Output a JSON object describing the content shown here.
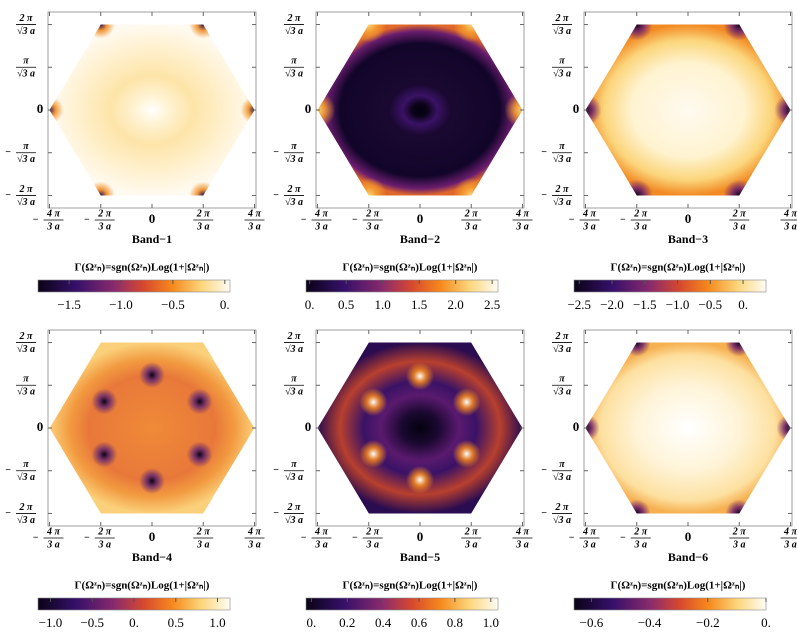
{
  "chart_data": [
    {
      "type": "heatmap",
      "title": "Band−1",
      "colorbar_label": "Γ(Ωᶻₙ)=sgn(Ωᶻₙ)Log(1+|Ωᶻₙ|)",
      "xlim": [
        -4.25,
        4.25
      ],
      "ylim": [
        -4.16,
        4.16
      ],
      "xticks": [
        {
          "value": -4.18879,
          "label": {
            "sign": "−",
            "num": "4 π",
            "den": "3 a"
          }
        },
        {
          "value": -2.0944,
          "label": {
            "sign": "−",
            "num": "2 π",
            "den": "3 a"
          }
        },
        0,
        {
          "value": 2.0944,
          "label": {
            "num": "2 π",
            "den": "3 a"
          }
        },
        {
          "value": 4.18879,
          "label": {
            "num": "4 π",
            "den": "3 a"
          }
        }
      ],
      "yticks": [
        {
          "value": -3.6276,
          "label": {
            "sign": "−",
            "num": "2 π",
            "den": "√3 a"
          }
        },
        {
          "value": -1.8138,
          "label": {
            "sign": "−",
            "num": "π",
            "den": "√3 a"
          }
        },
        0,
        {
          "value": 1.8138,
          "label": {
            "num": "π",
            "den": "√3 a"
          }
        },
        {
          "value": 3.6276,
          "label": {
            "num": "2 π",
            "den": "√3 a"
          }
        }
      ],
      "clim": [
        -1.8,
        0.05
      ],
      "cticks": [
        {
          "value": -1.5,
          "label": "−1.5"
        },
        {
          "value": -1,
          "label": "−1.0"
        },
        {
          "value": -0.5,
          "label": "−0.5"
        },
        {
          "value": 0,
          "label": "0."
        }
      ]
    },
    {
      "type": "heatmap",
      "title": "Band−2",
      "colorbar_label": "Γ(Ωᶻₙ)=sgn(Ωᶻₙ)Log(1+|Ωᶻₙ|)",
      "xlim": [
        -4.25,
        4.25
      ],
      "ylim": [
        -4.16,
        4.16
      ],
      "xticks": [
        {
          "value": -4.18879,
          "label": {
            "sign": "−",
            "num": "4 π",
            "den": "3 a"
          }
        },
        {
          "value": -2.0944,
          "label": {
            "sign": "−",
            "num": "2 π",
            "den": "3 a"
          }
        },
        0,
        {
          "value": 2.0944,
          "label": {
            "num": "2 π",
            "den": "3 a"
          }
        },
        {
          "value": 4.18879,
          "label": {
            "num": "4 π",
            "den": "3 a"
          }
        }
      ],
      "yticks": [
        {
          "value": -3.6276,
          "label": {
            "sign": "−",
            "num": "2 π",
            "den": "√3 a"
          }
        },
        {
          "value": -1.8138,
          "label": {
            "sign": "−",
            "num": "π",
            "den": "√3 a"
          }
        },
        0,
        {
          "value": 1.8138,
          "label": {
            "num": "π",
            "den": "√3 a"
          }
        },
        {
          "value": 3.6276,
          "label": {
            "num": "2 π",
            "den": "√3 a"
          }
        }
      ],
      "clim": [
        -0.05,
        2.58
      ],
      "cticks": [
        {
          "value": 0,
          "label": "0."
        },
        0.5,
        {
          "value": 1,
          "label": "1.0"
        },
        1.5,
        {
          "value": 2,
          "label": "2.0"
        },
        2.5
      ]
    },
    {
      "type": "heatmap",
      "title": "Band−3",
      "colorbar_label": "Γ(Ωᶻₙ)=sgn(Ωᶻₙ)Log(1+|Ωᶻₙ|)",
      "xlim": [
        -4.25,
        4.25
      ],
      "ylim": [
        -4.16,
        4.16
      ],
      "xticks": [
        {
          "value": -4.18879,
          "label": {
            "sign": "−",
            "num": "4 π",
            "den": "3 a"
          }
        },
        {
          "value": -2.0944,
          "label": {
            "sign": "−",
            "num": "2 π",
            "den": "3 a"
          }
        },
        0,
        {
          "value": 2.0944,
          "label": {
            "num": "2 π",
            "den": "3 a"
          }
        },
        {
          "value": 4.18879,
          "label": {
            "num": "4 π",
            "den": "3 a"
          }
        }
      ],
      "yticks": [
        {
          "value": -3.6276,
          "label": {
            "sign": "−",
            "num": "2 π",
            "den": "√3 a"
          }
        },
        {
          "value": -1.8138,
          "label": {
            "sign": "−",
            "num": "π",
            "den": "√3 a"
          }
        },
        0,
        {
          "value": 1.8138,
          "label": {
            "num": "π",
            "den": "√3 a"
          }
        },
        {
          "value": 3.6276,
          "label": {
            "num": "2 π",
            "den": "√3 a"
          }
        }
      ],
      "clim": [
        -2.58,
        0.35
      ],
      "cticks": [
        {
          "value": -2.5,
          "label": "−2.5"
        },
        {
          "value": -2,
          "label": "−2.0"
        },
        {
          "value": -1.5,
          "label": "−1.5"
        },
        {
          "value": -1,
          "label": "−1.0"
        },
        {
          "value": -0.5,
          "label": "−0.5"
        },
        {
          "value": 0,
          "label": "0."
        }
      ]
    },
    {
      "type": "heatmap",
      "title": "Band−4",
      "colorbar_label": "Γ(Ωᶻₙ)=sgn(Ωᶻₙ)Log(1+|Ωᶻₙ|)",
      "xlim": [
        -4.25,
        4.25
      ],
      "ylim": [
        -4.16,
        4.16
      ],
      "xticks": [
        {
          "value": -4.18879,
          "label": {
            "sign": "−",
            "num": "4 π",
            "den": "3 a"
          }
        },
        {
          "value": -2.0944,
          "label": {
            "sign": "−",
            "num": "2 π",
            "den": "3 a"
          }
        },
        0,
        {
          "value": 2.0944,
          "label": {
            "num": "2 π",
            "den": "3 a"
          }
        },
        {
          "value": 4.18879,
          "label": {
            "num": "4 π",
            "den": "3 a"
          }
        }
      ],
      "yticks": [
        {
          "value": -3.6276,
          "label": {
            "sign": "−",
            "num": "2 π",
            "den": "√3 a"
          }
        },
        {
          "value": -1.8138,
          "label": {
            "sign": "−",
            "num": "π",
            "den": "√3 a"
          }
        },
        0,
        {
          "value": 1.8138,
          "label": {
            "num": "π",
            "den": "√3 a"
          }
        },
        {
          "value": 3.6276,
          "label": {
            "num": "2 π",
            "den": "√3 a"
          }
        }
      ],
      "clim": [
        -1.15,
        1.15
      ],
      "cticks": [
        {
          "value": -1,
          "label": "−1.0"
        },
        {
          "value": -0.5,
          "label": "−0.5"
        },
        {
          "value": 0,
          "label": "0."
        },
        0.5,
        {
          "value": 1,
          "label": "1.0"
        }
      ]
    },
    {
      "type": "heatmap",
      "title": "Band−5",
      "colorbar_label": "Γ(Ωᶻₙ)=sgn(Ωᶻₙ)Log(1+|Ωᶻₙ|)",
      "xlim": [
        -4.25,
        4.25
      ],
      "ylim": [
        -4.16,
        4.16
      ],
      "xticks": [
        {
          "value": -4.18879,
          "label": {
            "sign": "−",
            "num": "4 π",
            "den": "3 a"
          }
        },
        {
          "value": -2.0944,
          "label": {
            "sign": "−",
            "num": "2 π",
            "den": "3 a"
          }
        },
        0,
        {
          "value": 2.0944,
          "label": {
            "num": "2 π",
            "den": "3 a"
          }
        },
        {
          "value": 4.18879,
          "label": {
            "num": "4 π",
            "den": "3 a"
          }
        }
      ],
      "yticks": [
        {
          "value": -3.6276,
          "label": {
            "sign": "−",
            "num": "2 π",
            "den": "√3 a"
          }
        },
        {
          "value": -1.8138,
          "label": {
            "sign": "−",
            "num": "π",
            "den": "√3 a"
          }
        },
        0,
        {
          "value": 1.8138,
          "label": {
            "num": "π",
            "den": "√3 a"
          }
        },
        {
          "value": 3.6276,
          "label": {
            "num": "2 π",
            "den": "√3 a"
          }
        }
      ],
      "clim": [
        -0.03,
        1.04
      ],
      "cticks": [
        {
          "value": 0,
          "label": "0."
        },
        0.2,
        0.4,
        0.6,
        0.8,
        {
          "value": 1,
          "label": "1.0"
        }
      ]
    },
    {
      "type": "heatmap",
      "title": "Band−6",
      "colorbar_label": "Γ(Ωᶻₙ)=sgn(Ωᶻₙ)Log(1+|Ωᶻₙ|)",
      "xlim": [
        -4.25,
        4.25
      ],
      "ylim": [
        -4.16,
        4.16
      ],
      "xticks": [
        {
          "value": -4.18879,
          "label": {
            "sign": "−",
            "num": "4 π",
            "den": "3 a"
          }
        },
        {
          "value": -2.0944,
          "label": {
            "sign": "−",
            "num": "2 π",
            "den": "3 a"
          }
        },
        0,
        {
          "value": 2.0944,
          "label": {
            "num": "2 π",
            "den": "3 a"
          }
        },
        {
          "value": 4.18879,
          "label": {
            "num": "4 π",
            "den": "3 a"
          }
        }
      ],
      "yticks": [
        {
          "value": -3.6276,
          "label": {
            "sign": "−",
            "num": "2 π",
            "den": "√3 a"
          }
        },
        {
          "value": -1.8138,
          "label": {
            "sign": "−",
            "num": "π",
            "den": "√3 a"
          }
        },
        0,
        {
          "value": 1.8138,
          "label": {
            "num": "π",
            "den": "√3 a"
          }
        },
        {
          "value": 3.6276,
          "label": {
            "num": "2 π",
            "den": "√3 a"
          }
        }
      ],
      "clim": [
        -0.66,
        0.0
      ],
      "cticks": [
        {
          "value": -0.6,
          "label": "−0.6"
        },
        {
          "value": -0.4,
          "label": "−0.4"
        },
        {
          "value": -0.2,
          "label": "−0.2"
        },
        {
          "value": 0,
          "label": "0."
        }
      ]
    }
  ]
}
